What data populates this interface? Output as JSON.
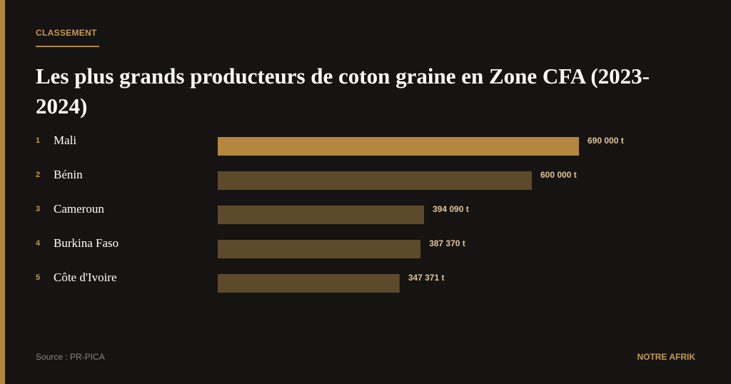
{
  "header": {
    "kicker": "CLASSEMENT"
  },
  "chart_data": {
    "type": "bar",
    "orientation": "horizontal",
    "title": "Les plus grands producteurs de coton graine en Zone CFA (2023-2024)",
    "ranks": [
      1,
      2,
      3,
      4,
      5
    ],
    "categories": [
      "Mali",
      "Bénin",
      "Cameroun",
      "Burkina Faso",
      "Côte d'Ivoire"
    ],
    "values": [
      690000,
      600000,
      394090,
      387370,
      347371
    ],
    "value_labels": [
      "690 000 t",
      "600 000 t",
      "394 090 t",
      "387 370 t",
      "347 371 t"
    ],
    "colors": [
      "#b3873d",
      "#5c4a2b",
      "#5c4a2b",
      "#5c4a2b",
      "#5c4a2b"
    ]
  },
  "footer": {
    "source": "Source : PR-PICA",
    "brand": "NOTRE AFRIK"
  }
}
